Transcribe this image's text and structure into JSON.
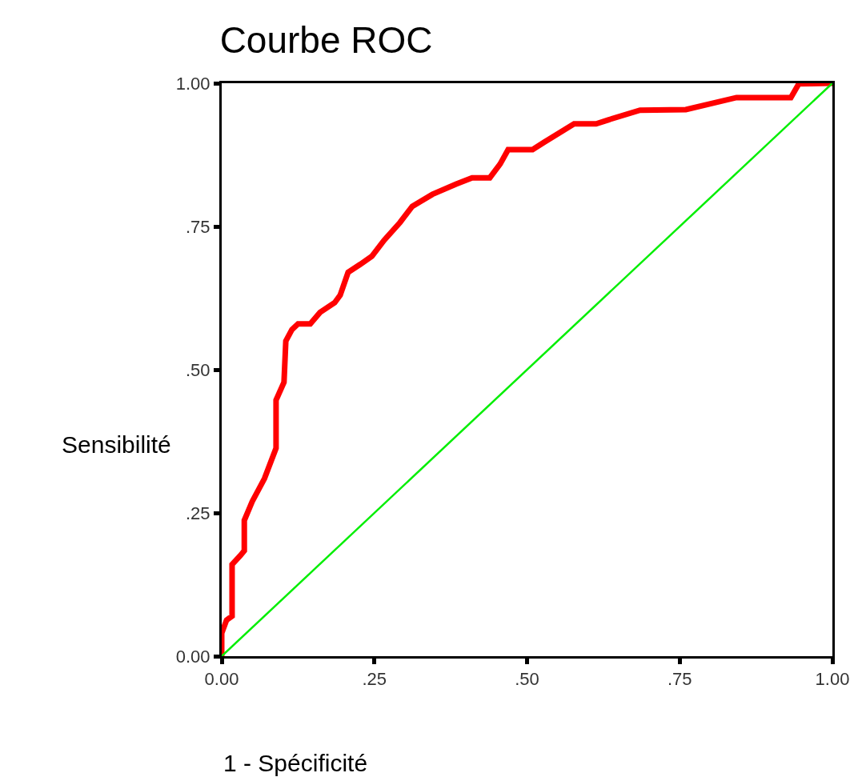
{
  "chart_data": {
    "type": "line",
    "title": "Courbe ROC",
    "xlabel": "1 - Spécificité",
    "ylabel": "Sensibilité",
    "xlim": [
      0,
      1
    ],
    "ylim": [
      0,
      1
    ],
    "xticks": [
      {
        "value": 0,
        "label": "0.00"
      },
      {
        "value": 0.25,
        "label": ".25"
      },
      {
        "value": 0.5,
        "label": ".50"
      },
      {
        "value": 0.75,
        "label": ".75"
      },
      {
        "value": 1,
        "label": "1.00"
      }
    ],
    "yticks": [
      {
        "value": 0,
        "label": "0.00"
      },
      {
        "value": 0.25,
        "label": ".25"
      },
      {
        "value": 0.5,
        "label": ".50"
      },
      {
        "value": 0.75,
        "label": ".75"
      },
      {
        "value": 1,
        "label": "1.00"
      }
    ],
    "marker": "none",
    "line_style": "solid",
    "series": [
      {
        "color": "#ff0000",
        "x": [
          0,
          0,
          0.008,
          0.017,
          0.017,
          0.03,
          0.037,
          0.037,
          0.05,
          0.07,
          0.089,
          0.089,
          0.102,
          0.105,
          0.115,
          0.125,
          0.145,
          0.161,
          0.185,
          0.194,
          0.207,
          0.227,
          0.246,
          0.266,
          0.292,
          0.312,
          0.345,
          0.384,
          0.41,
          0.439,
          0.456,
          0.469,
          0.509,
          0.528,
          0.577,
          0.613,
          0.633,
          0.685,
          0.76,
          0.843,
          0.932,
          0.945,
          1
        ],
        "values": [
          0,
          0.04,
          0.063,
          0.07,
          0.16,
          0.175,
          0.184,
          0.237,
          0.27,
          0.31,
          0.363,
          0.447,
          0.478,
          0.55,
          0.57,
          0.58,
          0.58,
          0.6,
          0.617,
          0.63,
          0.67,
          0.684,
          0.698,
          0.726,
          0.757,
          0.785,
          0.806,
          0.824,
          0.835,
          0.835,
          0.859,
          0.884,
          0.884,
          0.897,
          0.929,
          0.929,
          0.936,
          0.953,
          0.954,
          0.975,
          0.975,
          0.999,
          1
        ]
      },
      {
        "color": "#00ee00",
        "x": [
          0,
          1
        ],
        "values": [
          0,
          1
        ]
      }
    ]
  }
}
